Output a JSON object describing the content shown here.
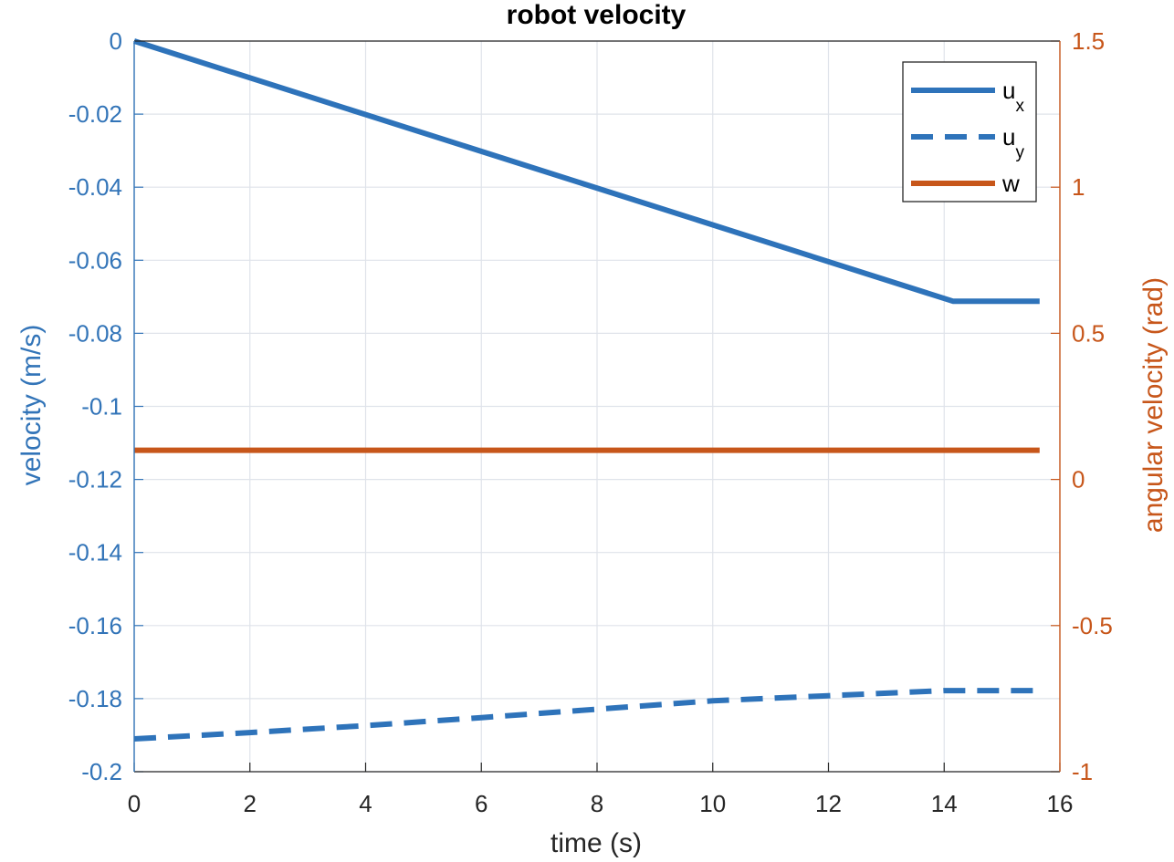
{
  "chart_data": {
    "type": "line",
    "title": "robot velocity",
    "xlabel": "time (s)",
    "ylabel_left": "velocity (m/s)",
    "ylabel_right": "angular velocity (rad)",
    "xlim": [
      0,
      16
    ],
    "ylim_left": [
      -0.2,
      0
    ],
    "ylim_right": [
      -1,
      1.5
    ],
    "xticks": [
      "0",
      "2",
      "4",
      "6",
      "8",
      "10",
      "12",
      "14",
      "16"
    ],
    "yticks_left": [
      "0",
      "-0.02",
      "-0.04",
      "-0.06",
      "-0.08",
      "-0.1",
      "-0.12",
      "-0.14",
      "-0.16",
      "-0.18",
      "-0.2"
    ],
    "yticks_right": [
      "1.5",
      "1",
      "0.5",
      "0",
      "-0.5",
      "-1"
    ],
    "grid": true,
    "legend_position": "top-right",
    "colors": {
      "left_axis": "#3274B8",
      "right_axis": "#C7561A",
      "series_ux": "#2E73BA",
      "series_uy": "#2E73BA",
      "series_w": "#C7561A"
    },
    "series": [
      {
        "name": "ux",
        "legend_main": "u",
        "legend_sub": "x",
        "axis": "left",
        "style": "solid",
        "x": [
          0,
          14.15,
          15.65
        ],
        "y": [
          0,
          -0.0712,
          -0.0712
        ]
      },
      {
        "name": "uy",
        "legend_main": "u",
        "legend_sub": "y",
        "axis": "left",
        "style": "dashed",
        "x": [
          0,
          2,
          4,
          6,
          8,
          10,
          12,
          14,
          15.65
        ],
        "y": [
          -0.191,
          -0.1893,
          -0.1874,
          -0.1852,
          -0.1829,
          -0.1806,
          -0.1792,
          -0.1778,
          -0.1778
        ]
      },
      {
        "name": "w",
        "legend_main": "w",
        "legend_sub": "",
        "axis": "right",
        "style": "solid",
        "x": [
          0,
          15.65
        ],
        "y": [
          0.1,
          0.1
        ]
      }
    ]
  }
}
